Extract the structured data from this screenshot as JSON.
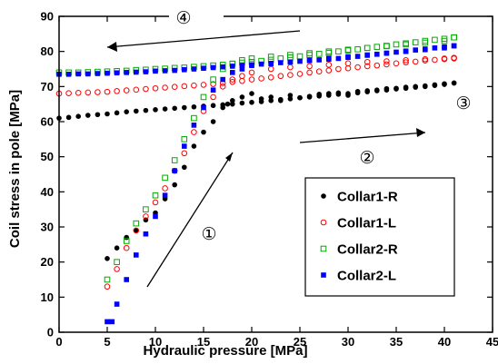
{
  "chart_data": {
    "type": "scatter",
    "xlabel": "Hydraulic pressure [MPa]",
    "ylabel": "Coil stress in pole [MPa]",
    "xlim": [
      0,
      45
    ],
    "ylim": [
      0,
      90
    ],
    "xticks": [
      "0",
      "5",
      "10",
      "15",
      "20",
      "25",
      "30",
      "35",
      "40",
      "45"
    ],
    "yticks": [
      "0",
      "10",
      "20",
      "30",
      "40",
      "50",
      "60",
      "70",
      "80",
      "90"
    ],
    "grid": false,
    "legend": "center-right",
    "annotations": [
      "①",
      "②",
      "③",
      "④"
    ],
    "series": [
      {
        "name": "Collar1-R",
        "marker": "filled-circle",
        "color": "#000000",
        "x": [
          0,
          1,
          2,
          3,
          4,
          5,
          6,
          7,
          8,
          9,
          10,
          11,
          12,
          13,
          14,
          15,
          16,
          17,
          18,
          19,
          20,
          21,
          22,
          23,
          24,
          25,
          26,
          27,
          28,
          29,
          30,
          31,
          32,
          33,
          34,
          35,
          36,
          37,
          38,
          39,
          40,
          41,
          5,
          6,
          7,
          8,
          9,
          10,
          11,
          12,
          13,
          14,
          15,
          16,
          17,
          17.5,
          18,
          19,
          20,
          21,
          22,
          23,
          24,
          25,
          26,
          27,
          28,
          29,
          30,
          31,
          32,
          33,
          34,
          35,
          36,
          37,
          38,
          39,
          40,
          41
        ],
        "y": [
          61,
          61.2,
          61.5,
          61.8,
          62,
          62.2,
          62.5,
          62.8,
          63,
          63.2,
          63.4,
          63.6,
          63.8,
          64,
          64.2,
          64.4,
          64.6,
          64.8,
          65,
          65.3,
          65.5,
          65.7,
          66,
          66.3,
          66.5,
          66.8,
          67,
          67.3,
          67.5,
          67.8,
          68,
          68.2,
          68.5,
          68.8,
          69,
          69.3,
          69.5,
          69.8,
          70,
          70.3,
          70.6,
          71,
          21,
          24,
          27,
          29,
          32,
          34,
          38,
          42,
          47,
          53,
          57,
          60,
          64,
          65,
          66,
          67,
          68,
          66.5,
          67,
          66,
          67.5,
          66.8,
          67.2,
          67.8,
          68,
          68.2,
          67.5,
          68.6,
          68.8,
          69,
          69.4,
          69.5,
          69.8,
          70,
          70.2,
          70.5,
          70.8,
          71
        ]
      },
      {
        "name": "Collar1-L",
        "marker": "open-circle",
        "color": "#ff0000",
        "x": [
          0,
          1,
          2,
          3,
          4,
          5,
          6,
          7,
          8,
          9,
          10,
          11,
          12,
          13,
          14,
          15,
          16,
          17,
          18,
          19,
          20,
          21,
          22,
          23,
          24,
          25,
          26,
          27,
          28,
          29,
          30,
          31,
          32,
          33,
          34,
          35,
          36,
          37,
          38,
          39,
          40,
          41,
          5,
          6,
          7,
          8,
          9,
          10,
          11,
          12,
          13,
          14,
          15,
          16,
          17,
          18,
          19,
          20,
          22,
          24,
          26,
          28,
          30,
          32,
          34,
          36,
          38,
          40,
          41
        ],
        "y": [
          68,
          68.1,
          68.2,
          68.3,
          68.4,
          68.5,
          68.7,
          68.9,
          69.1,
          69.3,
          69.5,
          69.7,
          69.9,
          70.1,
          70.3,
          70.5,
          70.7,
          71,
          71.3,
          71.6,
          72,
          72.3,
          72.6,
          73,
          73.3,
          73.6,
          74,
          74.3,
          74.6,
          75,
          75.2,
          75.5,
          75.8,
          76,
          76.3,
          76.6,
          76.9,
          77.1,
          77.4,
          77.6,
          77.8,
          78,
          13,
          18,
          24,
          29,
          33,
          37,
          41,
          46,
          51,
          57,
          63,
          67,
          70,
          72,
          73,
          74,
          75,
          75.5,
          75.8,
          76.2,
          76.6,
          77,
          77.2,
          77.5,
          77.8,
          78,
          78.2
        ]
      },
      {
        "name": "Collar2-R",
        "marker": "open-square",
        "color": "#00aa00",
        "x": [
          0,
          1,
          2,
          3,
          4,
          5,
          6,
          7,
          8,
          9,
          10,
          11,
          12,
          13,
          14,
          15,
          16,
          17,
          18,
          19,
          20,
          21,
          22,
          23,
          24,
          25,
          26,
          27,
          28,
          29,
          30,
          31,
          32,
          33,
          34,
          35,
          36,
          37,
          38,
          39,
          40,
          41,
          5,
          6,
          7,
          8,
          9,
          10,
          11,
          12,
          13,
          14,
          15,
          16,
          17,
          18,
          19,
          20,
          22,
          24,
          26,
          28,
          30,
          32,
          34,
          36,
          38,
          40,
          41
        ],
        "y": [
          74,
          74,
          74,
          74.1,
          74.2,
          74.3,
          74.4,
          74.5,
          74.7,
          74.8,
          75,
          75.1,
          75.3,
          75.4,
          75.6,
          75.8,
          76,
          76.2,
          76.5,
          76.8,
          77,
          77.3,
          77.6,
          78,
          78.3,
          78.6,
          79,
          79.3,
          79.6,
          80,
          80.3,
          80.6,
          81,
          81.3,
          81.6,
          82,
          82.3,
          82.6,
          83,
          83.3,
          83.6,
          84,
          15,
          20,
          26,
          31,
          35,
          39,
          44,
          49,
          55,
          61,
          67,
          72,
          75,
          76.5,
          77.5,
          78,
          78.5,
          79,
          79.5,
          80,
          80.5,
          81,
          81.5,
          82,
          82.5,
          83,
          84
        ]
      },
      {
        "name": "Collar2-L",
        "marker": "filled-square",
        "color": "#0000ff",
        "x": [
          0,
          1,
          2,
          3,
          4,
          5,
          6,
          7,
          8,
          9,
          10,
          11,
          12,
          13,
          14,
          15,
          16,
          17,
          18,
          19,
          20,
          21,
          22,
          23,
          24,
          25,
          26,
          27,
          28,
          29,
          30,
          31,
          32,
          33,
          34,
          35,
          36,
          37,
          38,
          39,
          40,
          41,
          5,
          5.5,
          6,
          7,
          8,
          9,
          10,
          11,
          12,
          13,
          14,
          15,
          16,
          17,
          18,
          19,
          20,
          22,
          24,
          26,
          28,
          30,
          32,
          34,
          36,
          38,
          40,
          41
        ],
        "y": [
          73.5,
          73.5,
          73.6,
          73.6,
          73.7,
          73.8,
          73.9,
          74,
          74.1,
          74.2,
          74.4,
          74.5,
          74.6,
          74.8,
          75,
          75.2,
          75.4,
          75.6,
          75.8,
          76,
          76.2,
          76.4,
          76.6,
          76.8,
          77,
          77.2,
          77.4,
          77.6,
          77.8,
          78,
          78.3,
          78.6,
          78.9,
          79.2,
          79.5,
          79.8,
          80.1,
          80.4,
          80.7,
          81,
          81.3,
          81.6,
          3,
          3,
          8,
          15,
          22,
          28,
          33,
          39,
          46,
          53,
          59,
          64,
          69,
          72,
          74,
          75,
          76,
          76.5,
          77,
          77.5,
          78,
          78.5,
          79,
          79.5,
          80,
          80.5,
          81,
          81.6
        ]
      }
    ]
  }
}
